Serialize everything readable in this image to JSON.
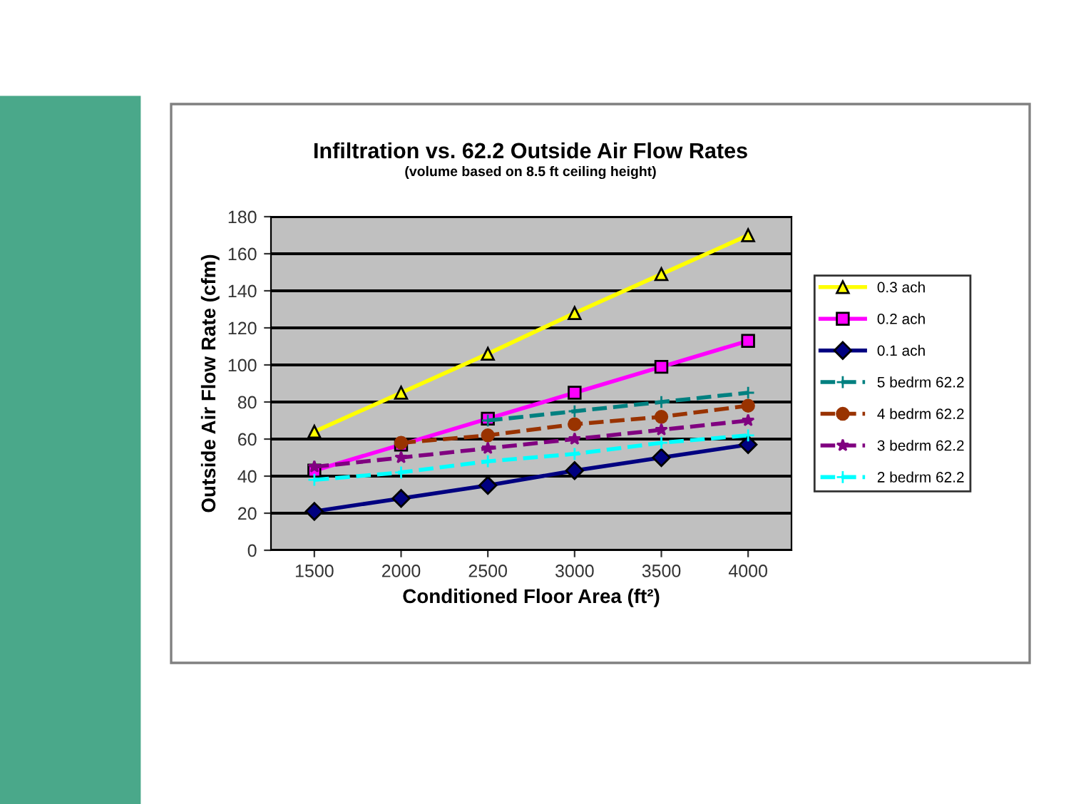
{
  "chart_data": {
    "type": "line",
    "title": "Infiltration vs. 62.2 Outside Air Flow Rates",
    "subtitle": "(volume based on 8.5 ft ceiling height)",
    "xlabel": "Conditioned Floor Area (ft²)",
    "ylabel": "Outside Air Flow Rate (cfm)",
    "x": [
      1500,
      2000,
      2500,
      3000,
      3500,
      4000
    ],
    "xlim": [
      1250,
      4250
    ],
    "xticks": [
      1500,
      2000,
      2500,
      3000,
      3500,
      4000
    ],
    "ylim": [
      0,
      180
    ],
    "yticks": [
      0,
      20,
      40,
      60,
      80,
      100,
      120,
      140,
      160,
      180
    ],
    "grid": "y",
    "legend": "right",
    "series": [
      {
        "name": "0.3 ach",
        "color": "#ffff00",
        "marker": "triangle",
        "line_style": "solid",
        "values": [
          64,
          85,
          106,
          128,
          149,
          170
        ]
      },
      {
        "name": "0.2 ach",
        "color": "#ff00ff",
        "marker": "square",
        "line_style": "solid",
        "values": [
          43,
          57,
          71,
          85,
          99,
          113
        ]
      },
      {
        "name": "0.1 ach",
        "color": "#000080",
        "marker": "diamond",
        "line_style": "solid",
        "values": [
          21,
          28,
          35,
          43,
          50,
          57
        ]
      },
      {
        "name": "5 bedrm 62.2",
        "color": "#008080",
        "marker": "cross",
        "line_style": "dashed",
        "values": [
          null,
          null,
          70,
          75,
          80,
          85
        ]
      },
      {
        "name": "4 bedrm 62.2",
        "color": "#993300",
        "marker": "circle",
        "line_style": "dashed",
        "values": [
          null,
          58,
          62,
          68,
          72,
          78
        ]
      },
      {
        "name": "3 bedrm 62.2",
        "color": "#800080",
        "marker": "star",
        "line_style": "dashed",
        "values": [
          45,
          50,
          55,
          60,
          65,
          70
        ]
      },
      {
        "name": "2 bedrm 62.2",
        "color": "#00ffff",
        "marker": "cross",
        "line_style": "dashed",
        "values": [
          38,
          42,
          48,
          52,
          58,
          62
        ]
      }
    ]
  }
}
